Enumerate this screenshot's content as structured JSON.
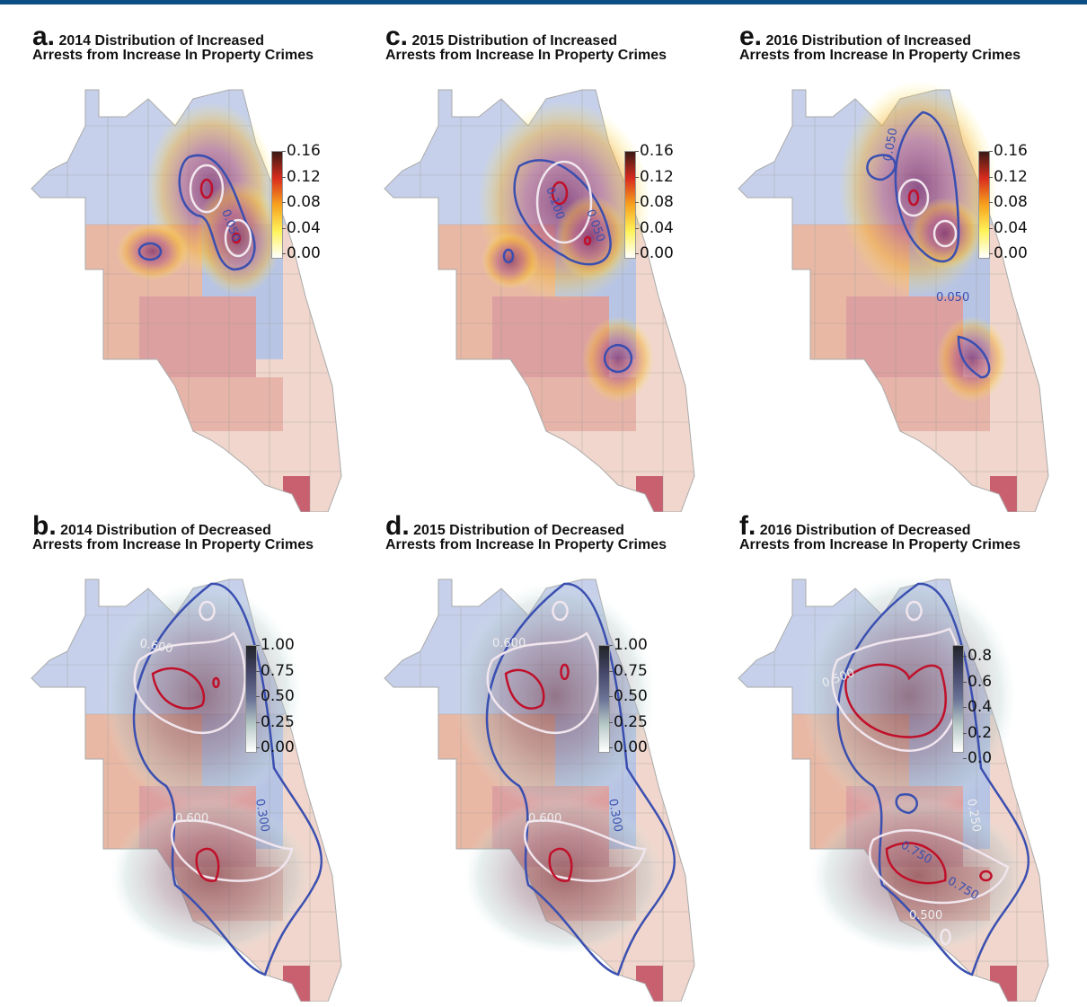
{
  "panels": [
    {
      "id": "a",
      "letter": "a.",
      "line1": "2014 Distribution of Increased",
      "line2": "Arrests from Increase In Property Crimes",
      "kind": "increased",
      "ticks": [
        "0.16",
        "0.12",
        "0.08",
        "0.04",
        "0.00"
      ],
      "contour_labels": [
        "0.050"
      ]
    },
    {
      "id": "c",
      "letter": "c.",
      "line1": "2015 Distribution of Increased",
      "line2": "Arrests from Increase In Property Crimes",
      "kind": "increased",
      "ticks": [
        "0.16",
        "0.12",
        "0.08",
        "0.04",
        "0.00"
      ],
      "contour_labels": [
        "0.100",
        "0.050"
      ]
    },
    {
      "id": "e",
      "letter": "e.",
      "line1": "2016 Distribution of Increased",
      "line2": "Arrests from Increase In Property Crimes",
      "kind": "increased",
      "ticks": [
        "0.16",
        "0.12",
        "0.08",
        "0.04",
        "0.00"
      ],
      "contour_labels": [
        "0.050",
        "0.050"
      ]
    },
    {
      "id": "b",
      "letter": "b.",
      "line1": "2014 Distribution of Decreased",
      "line2": "Arrests from Increase In Property Crimes",
      "kind": "decreased",
      "ticks": [
        "1.00",
        "0.75",
        "0.50",
        "0.25",
        "0.00"
      ],
      "contour_labels": [
        "0.600",
        "0.300",
        "0.600"
      ]
    },
    {
      "id": "d",
      "letter": "d.",
      "line1": "2015 Distribution of Decreased",
      "line2": "Arrests from Increase In Property Crimes",
      "kind": "decreased",
      "ticks": [
        "1.00",
        "0.75",
        "0.50",
        "0.25",
        "0.00"
      ],
      "contour_labels": [
        "0.600",
        "0.300",
        "0.600"
      ]
    },
    {
      "id": "f",
      "letter": "f.",
      "line1": "2016 Distribution of Decreased",
      "line2": "Arrests from Increase In Property Crimes",
      "kind": "decreased",
      "ticks": [
        "0.8",
        "0.6",
        "0.4",
        "0.2",
        "0.0"
      ],
      "contour_labels": [
        "0.500",
        "0.750",
        "0.250",
        "0.750",
        "0.500"
      ]
    }
  ],
  "colors": {
    "increased_scale": [
      "#ffffff",
      "#fff35a",
      "#f7a21e",
      "#d92c1e",
      "#3a1a14"
    ],
    "decreased_scale": [
      "#ffffff",
      "#b9cbc8",
      "#6a7396",
      "#45476a",
      "#222428"
    ],
    "contour_blue": "#3a4fb0",
    "contour_white": "#f1e6ee",
    "contour_red": "#c0102a"
  }
}
